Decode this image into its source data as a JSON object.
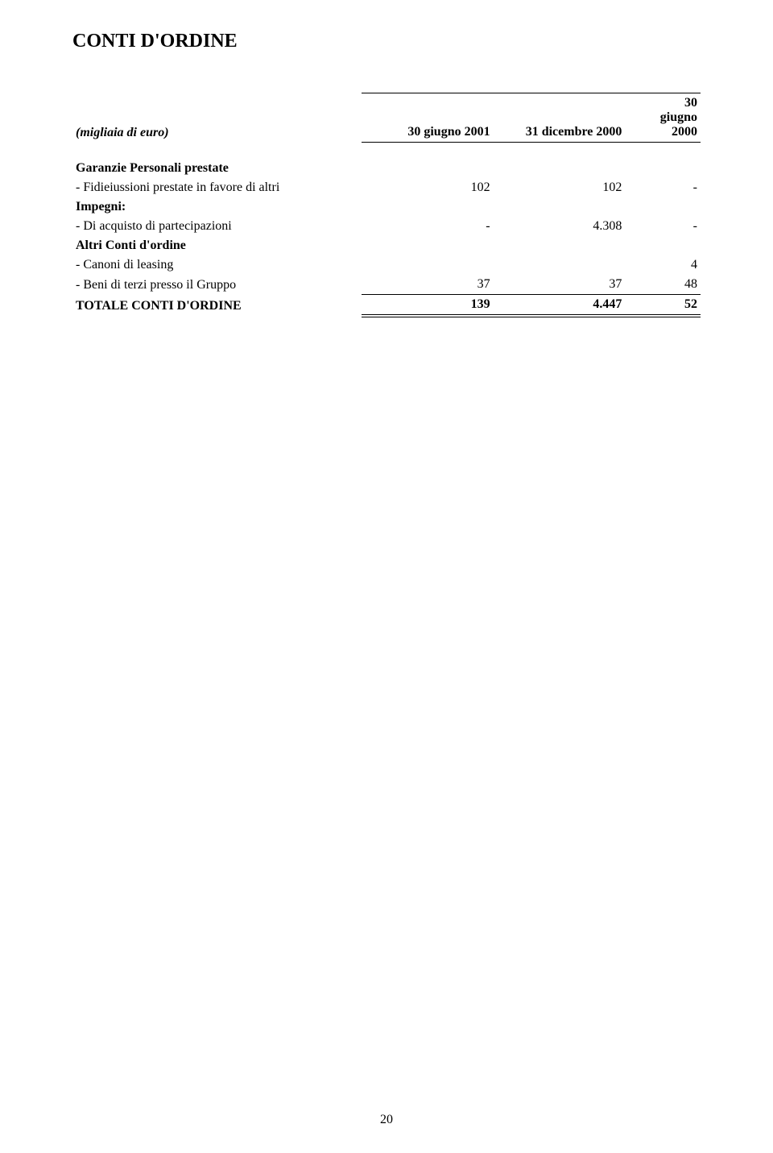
{
  "title": "CONTI D'ORDINE",
  "unit_label": "(migliaia di euro)",
  "columns": [
    "30 giugno 2001",
    "31 dicembre 2000",
    "30 giugno 2000"
  ],
  "sections": [
    {
      "heading": "Garanzie Personali prestate",
      "rows": [
        {
          "label": " - Fidieiussioni prestate in favore di altri",
          "values": [
            "102",
            "102",
            "-"
          ]
        }
      ]
    },
    {
      "heading": "Impegni:",
      "rows": [
        {
          "label": " - Di acquisto di partecipazioni",
          "values": [
            "-",
            "4.308",
            "-"
          ]
        }
      ]
    },
    {
      "heading": "Altri Conti d'ordine",
      "rows": [
        {
          "label": " - Canoni di leasing",
          "values": [
            "",
            "",
            "4"
          ]
        },
        {
          "label": " - Beni di terzi presso il Gruppo",
          "values": [
            "37",
            "37",
            "48"
          ]
        }
      ]
    }
  ],
  "total": {
    "label": "TOTALE CONTI D'ORDINE",
    "values": [
      "139",
      "4.447",
      "52"
    ]
  },
  "page_number": "20",
  "colors": {
    "background": "#ffffff",
    "text": "#000000",
    "border": "#000000"
  },
  "typography": {
    "font_family": "Times New Roman",
    "title_fontsize": 24,
    "body_fontsize": 16
  }
}
